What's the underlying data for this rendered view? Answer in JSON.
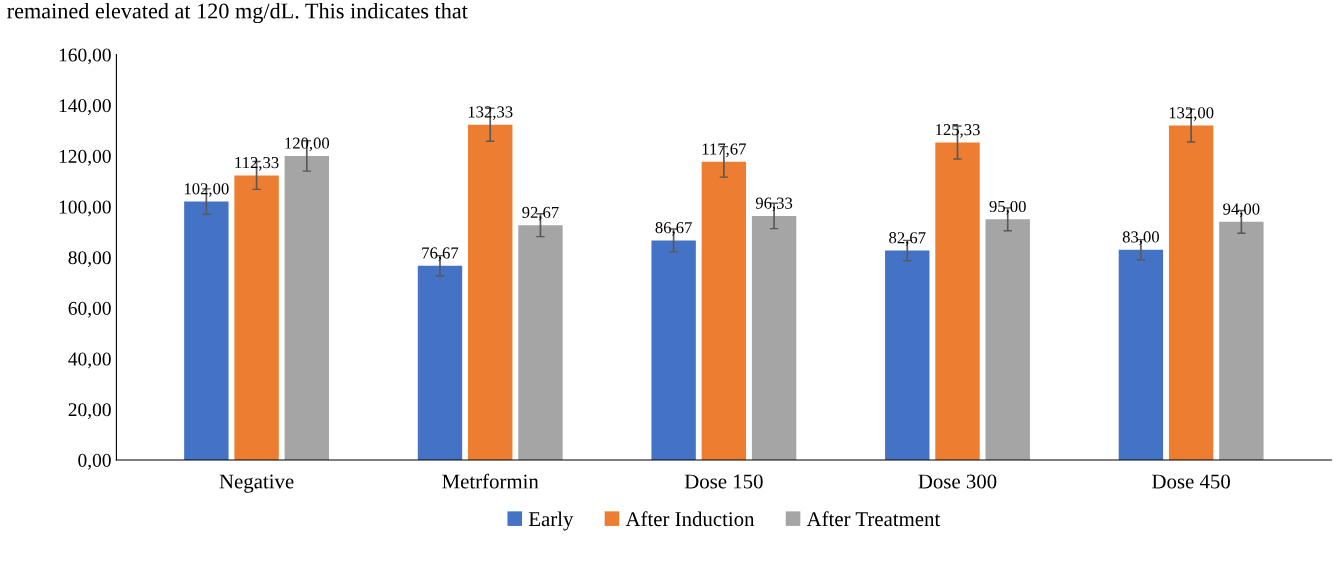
{
  "chart_data": {
    "type": "bar",
    "categories": [
      "Negative",
      "Metrformin",
      "Dose 150",
      "Dose 300",
      "Dose 450"
    ],
    "series": [
      {
        "name": "Early",
        "color": "#4472c4",
        "values": [
          102.0,
          76.67,
          86.67,
          82.67,
          83.0
        ],
        "errors": [
          5,
          4,
          4.5,
          4,
          4
        ],
        "value_labels": [
          "102,00",
          "76,67",
          "86,67",
          "82,67",
          "83,00"
        ]
      },
      {
        "name": "After Induction",
        "color": "#ed7d31",
        "values": [
          112.33,
          132.33,
          117.67,
          125.33,
          132.0
        ],
        "errors": [
          5.5,
          6.5,
          6,
          6.5,
          6.5
        ],
        "value_labels": [
          "112,33",
          "132,33",
          "117,67",
          "125,33",
          "132,00"
        ]
      },
      {
        "name": "After Treatment",
        "color": "#a5a5a5",
        "values": [
          120.0,
          92.67,
          96.33,
          95.0,
          94.0
        ],
        "errors": [
          6,
          4.5,
          5,
          4.5,
          4.5
        ],
        "value_labels": [
          "120,00",
          "92,67",
          "96,33",
          "95,00",
          "94,00"
        ]
      }
    ],
    "ylim": [
      0,
      160
    ],
    "yticks": [
      {
        "value": 0,
        "label": "0,00"
      },
      {
        "value": 20,
        "label": "20,00"
      },
      {
        "value": 40,
        "label": "40,00"
      },
      {
        "value": 60,
        "label": "60,00"
      },
      {
        "value": 80,
        "label": "80,00"
      },
      {
        "value": 100,
        "label": "100,00"
      },
      {
        "value": 120,
        "label": "120,00"
      },
      {
        "value": 140,
        "label": "140,00"
      },
      {
        "value": 160,
        "label": "160,00"
      }
    ],
    "annotations": [
      "remained elevated at 120 mg/dL. This indicates that"
    ],
    "grid": false,
    "legend": "bottom"
  }
}
